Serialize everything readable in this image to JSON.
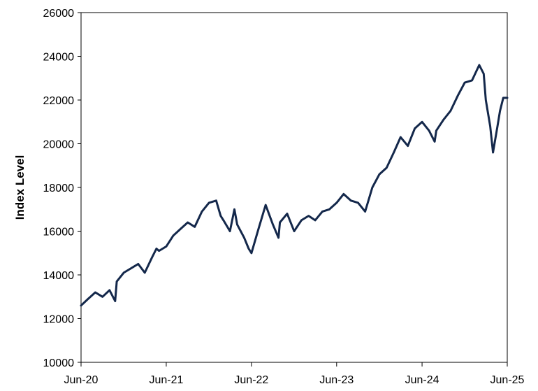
{
  "chart_data": {
    "type": "line",
    "title": "",
    "xlabel": "",
    "ylabel": "Index Level",
    "ylim": [
      10000,
      26000
    ],
    "yticks": [
      10000,
      12000,
      14000,
      16000,
      18000,
      20000,
      22000,
      24000,
      26000
    ],
    "xlim": [
      "2020-06",
      "2025-06"
    ],
    "xticks": [
      "Jun-20",
      "Jun-21",
      "Jun-22",
      "Jun-23",
      "Jun-24",
      "Jun-25"
    ],
    "grid": false,
    "legend": "none",
    "series": [
      {
        "color": "#14284b",
        "points": [
          [
            "2020-06",
            12600
          ],
          [
            "2020-07",
            12900
          ],
          [
            "2020-08",
            13200
          ],
          [
            "2020-09",
            13000
          ],
          [
            "2020-10",
            13300
          ],
          [
            "2020-10-25",
            12800
          ],
          [
            "2020-11",
            13700
          ],
          [
            "2020-12",
            14100
          ],
          [
            "2021-01",
            14300
          ],
          [
            "2021-02",
            14500
          ],
          [
            "2021-03",
            14100
          ],
          [
            "2021-04",
            14800
          ],
          [
            "2021-04-20",
            15200
          ],
          [
            "2021-05",
            15100
          ],
          [
            "2021-06",
            15300
          ],
          [
            "2021-07",
            15800
          ],
          [
            "2021-08",
            16100
          ],
          [
            "2021-09",
            16400
          ],
          [
            "2021-10",
            16200
          ],
          [
            "2021-11",
            16900
          ],
          [
            "2021-12",
            17300
          ],
          [
            "2022-01",
            17400
          ],
          [
            "2022-01-20",
            16700
          ],
          [
            "2022-02",
            16500
          ],
          [
            "2022-03",
            16000
          ],
          [
            "2022-03-20",
            17000
          ],
          [
            "2022-04",
            16300
          ],
          [
            "2022-05",
            15700
          ],
          [
            "2022-05-20",
            15200
          ],
          [
            "2022-06",
            15000
          ],
          [
            "2022-07",
            16100
          ],
          [
            "2022-08",
            17200
          ],
          [
            "2022-09",
            16300
          ],
          [
            "2022-09-25",
            15700
          ],
          [
            "2022-10",
            16400
          ],
          [
            "2022-11",
            16800
          ],
          [
            "2022-12",
            16000
          ],
          [
            "2023-01",
            16500
          ],
          [
            "2023-02",
            16700
          ],
          [
            "2023-03",
            16500
          ],
          [
            "2023-04",
            16900
          ],
          [
            "2023-05",
            17000
          ],
          [
            "2023-06",
            17300
          ],
          [
            "2023-07",
            17700
          ],
          [
            "2023-08",
            17400
          ],
          [
            "2023-09",
            17300
          ],
          [
            "2023-10",
            16900
          ],
          [
            "2023-11",
            18000
          ],
          [
            "2023-12",
            18600
          ],
          [
            "2024-01",
            18900
          ],
          [
            "2024-02",
            19600
          ],
          [
            "2024-03",
            20300
          ],
          [
            "2024-04",
            19900
          ],
          [
            "2024-05",
            20700
          ],
          [
            "2024-06",
            21000
          ],
          [
            "2024-07",
            20600
          ],
          [
            "2024-07-25",
            20100
          ],
          [
            "2024-08",
            20600
          ],
          [
            "2024-09",
            21100
          ],
          [
            "2024-10",
            21500
          ],
          [
            "2024-11",
            22200
          ],
          [
            "2024-12",
            22800
          ],
          [
            "2025-01",
            22900
          ],
          [
            "2025-02",
            23600
          ],
          [
            "2025-02-20",
            23200
          ],
          [
            "2025-03",
            22000
          ],
          [
            "2025-03-20",
            20800
          ],
          [
            "2025-04",
            19600
          ],
          [
            "2025-04-20",
            20800
          ],
          [
            "2025-05",
            21500
          ],
          [
            "2025-05-15",
            22100
          ],
          [
            "2025-06",
            22100
          ]
        ]
      }
    ]
  }
}
